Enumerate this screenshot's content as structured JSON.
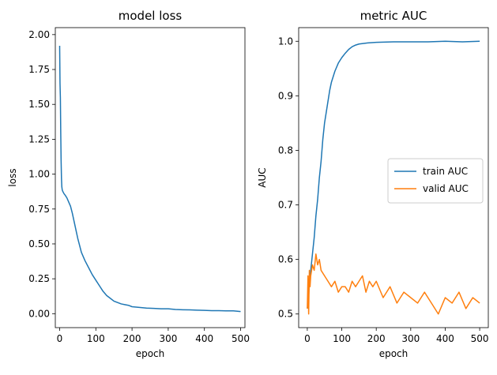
{
  "chart_data": [
    {
      "type": "line",
      "title": "model loss",
      "xlabel": "epoch",
      "ylabel": "loss",
      "xlim": [
        -12,
        512
      ],
      "ylim": [
        -0.1,
        2.05
      ],
      "xticks": [
        0,
        100,
        200,
        300,
        400,
        500
      ],
      "xtick_labels": [
        "0",
        "100",
        "200",
        "300",
        "400",
        "500"
      ],
      "yticks": [
        0.0,
        0.25,
        0.5,
        0.75,
        1.0,
        1.25,
        1.5,
        1.75,
        2.0
      ],
      "ytick_labels": [
        "0.00",
        "0.25",
        "0.50",
        "0.75",
        "1.00",
        "1.25",
        "1.50",
        "1.75",
        "2.00"
      ],
      "grid": false,
      "series": [
        {
          "color": "#1f77b4",
          "x": [
            0,
            1,
            2,
            3,
            4,
            5,
            6,
            7,
            8,
            10,
            12,
            15,
            20,
            25,
            30,
            35,
            40,
            45,
            50,
            55,
            60,
            70,
            80,
            90,
            100,
            110,
            120,
            130,
            140,
            150,
            160,
            170,
            180,
            190,
            200,
            220,
            240,
            260,
            280,
            300,
            320,
            340,
            360,
            380,
            400,
            420,
            440,
            460,
            480,
            500
          ],
          "y": [
            1.92,
            1.65,
            1.55,
            1.3,
            1.1,
            0.97,
            0.91,
            0.89,
            0.88,
            0.87,
            0.86,
            0.85,
            0.83,
            0.8,
            0.77,
            0.72,
            0.66,
            0.6,
            0.54,
            0.49,
            0.44,
            0.38,
            0.33,
            0.28,
            0.24,
            0.2,
            0.16,
            0.13,
            0.11,
            0.09,
            0.08,
            0.07,
            0.065,
            0.06,
            0.05,
            0.045,
            0.04,
            0.038,
            0.035,
            0.035,
            0.03,
            0.028,
            0.027,
            0.025,
            0.024,
            0.022,
            0.022,
            0.02,
            0.02,
            0.015
          ]
        }
      ]
    },
    {
      "type": "line",
      "title": "metric AUC",
      "xlabel": "epoch",
      "ylabel": "AUC",
      "xlim": [
        -25,
        525
      ],
      "ylim": [
        0.475,
        1.025
      ],
      "xticks": [
        0,
        100,
        200,
        300,
        400,
        500
      ],
      "xtick_labels": [
        "0",
        "100",
        "200",
        "300",
        "400",
        "500"
      ],
      "yticks": [
        0.5,
        0.6,
        0.7,
        0.8,
        0.9,
        1.0
      ],
      "ytick_labels": [
        "0.5",
        "0.6",
        "0.7",
        "0.8",
        "0.9",
        "1.0"
      ],
      "grid": false,
      "legend": "center-right",
      "series": [
        {
          "name": "train AUC",
          "color": "#1f77b4",
          "x": [
            0,
            3,
            6,
            10,
            15,
            20,
            25,
            30,
            35,
            40,
            45,
            50,
            55,
            60,
            65,
            70,
            80,
            90,
            100,
            110,
            120,
            130,
            140,
            150,
            175,
            200,
            250,
            300,
            350,
            400,
            450,
            500
          ],
          "y": [
            0.51,
            0.52,
            0.56,
            0.58,
            0.61,
            0.64,
            0.68,
            0.71,
            0.75,
            0.78,
            0.82,
            0.85,
            0.87,
            0.89,
            0.91,
            0.925,
            0.945,
            0.96,
            0.97,
            0.978,
            0.985,
            0.99,
            0.993,
            0.995,
            0.997,
            0.998,
            0.999,
            0.999,
            0.999,
            1.0,
            0.999,
            1.0
          ]
        },
        {
          "name": "valid AUC",
          "color": "#ff7f0e",
          "x": [
            0,
            2,
            4,
            6,
            8,
            10,
            15,
            20,
            25,
            30,
            35,
            40,
            50,
            60,
            70,
            80,
            90,
            100,
            110,
            120,
            130,
            140,
            150,
            160,
            170,
            180,
            190,
            200,
            220,
            240,
            260,
            280,
            300,
            320,
            340,
            360,
            380,
            400,
            420,
            440,
            460,
            480,
            500
          ],
          "y": [
            0.51,
            0.57,
            0.5,
            0.58,
            0.55,
            0.57,
            0.59,
            0.58,
            0.61,
            0.59,
            0.6,
            0.58,
            0.57,
            0.56,
            0.55,
            0.56,
            0.54,
            0.55,
            0.55,
            0.54,
            0.56,
            0.55,
            0.56,
            0.57,
            0.54,
            0.56,
            0.55,
            0.56,
            0.53,
            0.55,
            0.52,
            0.54,
            0.53,
            0.52,
            0.54,
            0.52,
            0.5,
            0.53,
            0.52,
            0.54,
            0.51,
            0.53,
            0.52
          ]
        }
      ]
    }
  ]
}
